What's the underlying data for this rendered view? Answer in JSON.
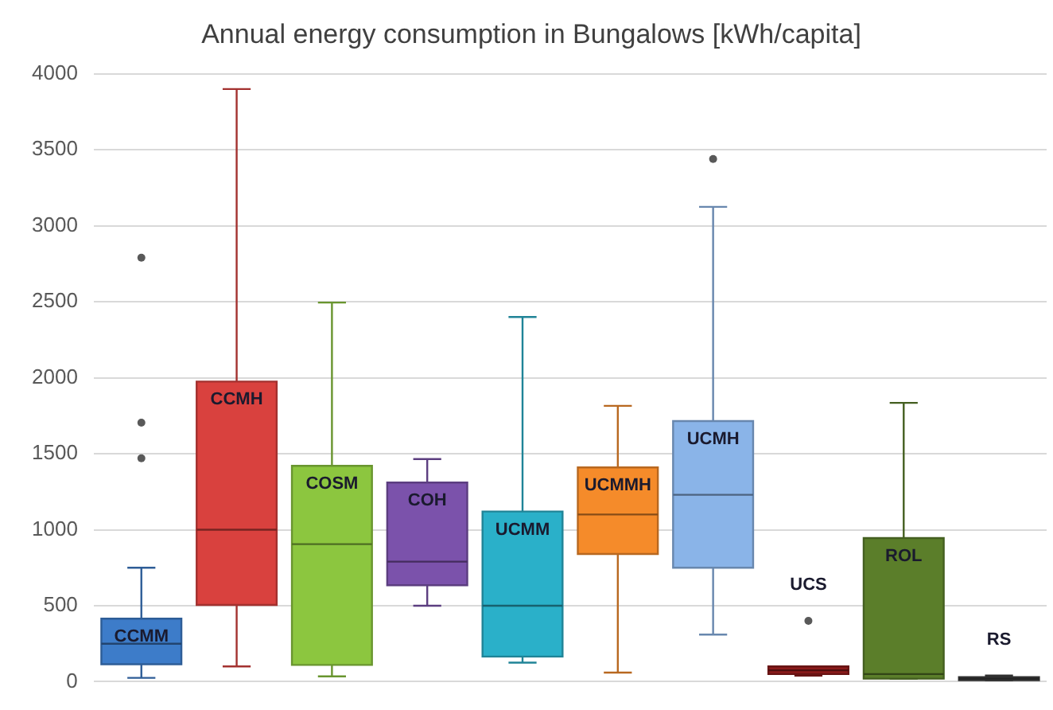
{
  "chart_data": {
    "type": "box",
    "title": "Annual energy consumption in Bungalows [kWh/capita]",
    "categories": [
      "CCMM",
      "CCMH",
      "COSM",
      "COH",
      "UCMM",
      "UCMMH",
      "UCMH",
      "UCS",
      "ROL",
      "RS"
    ],
    "colors": [
      "#3d7cc9",
      "#d9413e",
      "#8cc63f",
      "#7b52ab",
      "#2ab0c9",
      "#f58b2a",
      "#8ab4e8",
      "#8b1a1a",
      "#5b7e2a",
      "#404040"
    ],
    "boxes": [
      {
        "low": 25,
        "q1": 115,
        "median": 250,
        "q3": 415,
        "high": 750,
        "outliers": [
          2790,
          1705,
          1470
        ]
      },
      {
        "low": 100,
        "q1": 505,
        "median": 1000,
        "q3": 1975,
        "high": 3900
      },
      {
        "low": 35,
        "q1": 110,
        "median": 905,
        "q3": 1420,
        "high": 2495
      },
      {
        "low": 500,
        "q1": 635,
        "median": 790,
        "q3": 1310,
        "high": 1465
      },
      {
        "low": 125,
        "q1": 165,
        "median": 500,
        "q3": 1120,
        "high": 2400
      },
      {
        "low": 60,
        "q1": 840,
        "median": 1100,
        "q3": 1410,
        "high": 1815
      },
      {
        "low": 310,
        "q1": 750,
        "median": 1230,
        "q3": 1715,
        "high": 3125,
        "outliers": [
          3440
        ]
      },
      {
        "low": 40,
        "q1": 50,
        "median": 75,
        "q3": 100,
        "high": 100,
        "outliers": [
          400
        ]
      },
      {
        "low": 20,
        "q1": 20,
        "median": 50,
        "q3": 945,
        "high": 1835
      },
      {
        "low": 10,
        "q1": 15,
        "median": 20,
        "q3": 30,
        "high": 40
      }
    ],
    "ylim": [
      0,
      4000
    ],
    "yticks": [
      0,
      500,
      1000,
      1500,
      2000,
      2500,
      3000,
      3500,
      4000
    ],
    "grid": "y",
    "tick_labels": "y"
  }
}
